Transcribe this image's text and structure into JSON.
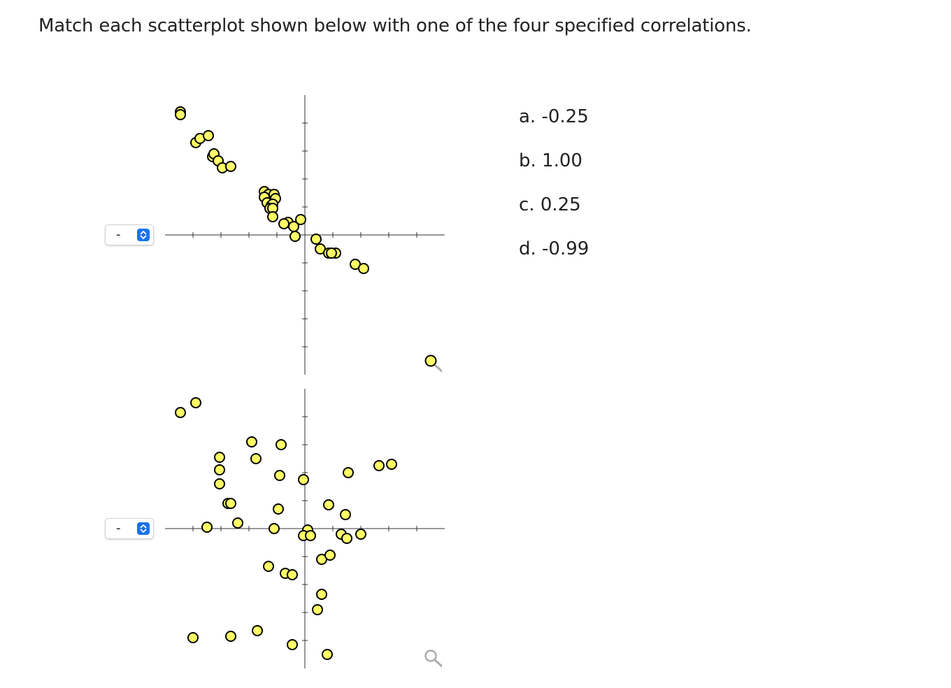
{
  "question": "Match each scatterplot shown below with one of the four specified correlations.",
  "plots": [
    {
      "select": {
        "selected": "-"
      },
      "chart_data": {
        "type": "scatter",
        "x": [
          -8.9,
          -8.9,
          -7.8,
          -7.5,
          -6.9,
          -6.6,
          -6.5,
          -6.2,
          -5.9,
          -5.3,
          -2.9,
          -2.6,
          -2.9,
          -2.2,
          -2.1,
          -2.7,
          -2.4,
          -2.3,
          -2.5,
          -2.3,
          -2.3,
          -1.2,
          -1.5,
          -0.8,
          -0.3,
          -0.7,
          0.8,
          1.1,
          1.7,
          2.2,
          1.9,
          3.6,
          4.2
        ],
        "y": [
          8.8,
          8.6,
          6.6,
          6.9,
          7.1,
          5.6,
          5.8,
          5.3,
          4.8,
          4.9,
          3.1,
          2.9,
          2.7,
          2.9,
          2.6,
          2.3,
          2.1,
          2.2,
          1.9,
          1.9,
          1.3,
          0.9,
          0.8,
          0.6,
          1.1,
          -0.1,
          -0.3,
          -1.0,
          -1.3,
          -1.3,
          -1.3,
          -2.1,
          -2.4
        ],
        "xlim": [
          -10,
          10
        ],
        "ylim": [
          -10,
          10
        ]
      }
    },
    {
      "select": {
        "selected": "-"
      },
      "chart_data": {
        "type": "scatter",
        "x": [
          -8.9,
          -7.8,
          -6.1,
          -6.1,
          -6.1,
          -5.5,
          -5.3,
          -7.0,
          -4.8,
          -3.8,
          -3.5,
          -1.7,
          -1.8,
          -1.9,
          -2.2,
          -0.1,
          0.2,
          -0.1,
          2.6,
          4.0,
          5.3,
          6.2,
          3.1,
          1.7,
          2.9,
          3.0,
          0.4,
          1.2,
          1.8,
          -1.4,
          -2.6,
          -0.9,
          -3.4,
          1.2,
          0.9,
          -0.9,
          -5.3,
          -8.0,
          1.6
        ],
        "y": [
          8.3,
          9.0,
          5.1,
          4.2,
          3.2,
          1.8,
          1.8,
          0.1,
          0.4,
          6.2,
          5.0,
          6.0,
          3.8,
          1.4,
          0.0,
          3.5,
          -0.1,
          -0.5,
          -0.4,
          -0.4,
          4.5,
          4.6,
          4.0,
          1.7,
          1.0,
          -0.7,
          -0.5,
          -2.2,
          -1.9,
          -3.2,
          -2.7,
          -3.3,
          -7.3,
          -4.7,
          -5.8,
          -8.3,
          -7.7,
          -7.8,
          -9.0
        ],
        "xlim": [
          -10,
          10
        ],
        "ylim": [
          -10,
          10
        ]
      }
    }
  ],
  "options": [
    "a. -0.25",
    "b. 1.00",
    "c. 0.25",
    "d. -0.99"
  ],
  "colors": {
    "point_fill": "#ffff66",
    "point_stroke": "#000000",
    "axis": "#333333",
    "select_arrow": "#1a73e8",
    "zoom_icon": "#aaaaaa"
  },
  "icons": {
    "zoom": "magnifier-icon",
    "select": "up-down-arrows-icon"
  }
}
